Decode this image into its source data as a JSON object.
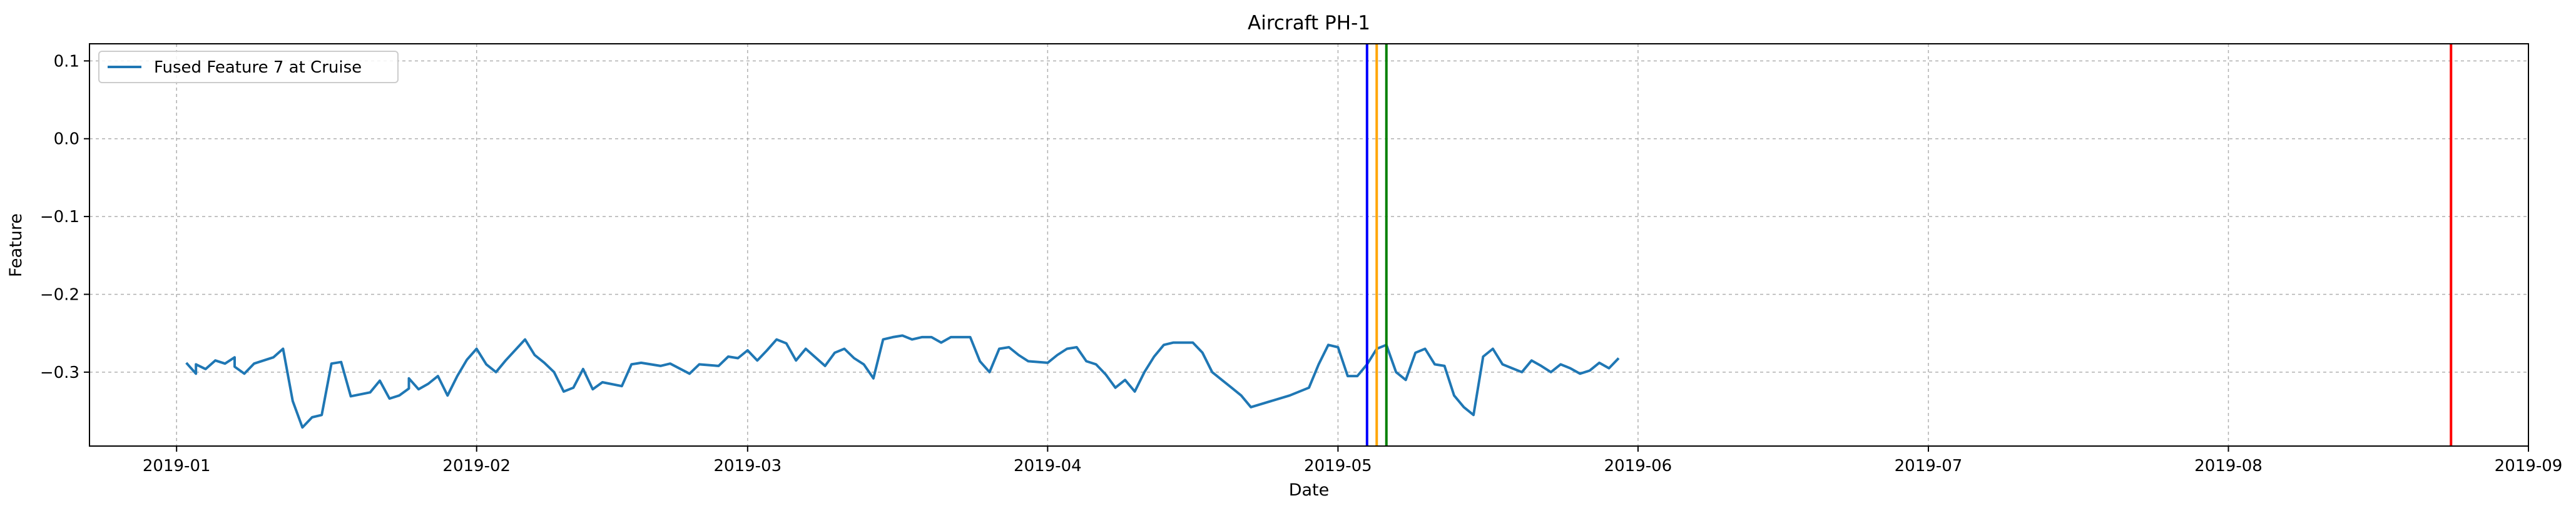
{
  "chart_data": {
    "type": "line",
    "title": "Aircraft PH-1",
    "xlabel": "Date",
    "ylabel": "Feature",
    "x_type": "date",
    "xlim": [
      "2018-12-23",
      "2019-09-01"
    ],
    "ylim": [
      -0.395,
      0.122
    ],
    "xticks": [
      "2019-01",
      "2019-02",
      "2019-03",
      "2019-04",
      "2019-05",
      "2019-06",
      "2019-07",
      "2019-08",
      "2019-09"
    ],
    "yticks": [
      -0.3,
      -0.2,
      -0.1,
      0.0,
      0.1
    ],
    "ytick_labels": [
      "−0.3",
      "−0.2",
      "−0.1",
      "0.0",
      "0.1"
    ],
    "grid": true,
    "legend_position": "top-left",
    "series": [
      {
        "name": "Fused Feature 7 at Cruise",
        "color": "#1f77b4",
        "points": [
          [
            "2019-01-02",
            -0.288
          ],
          [
            "2019-01-03",
            -0.302
          ],
          [
            "2019-01-03",
            -0.29
          ],
          [
            "2019-01-04",
            -0.296
          ],
          [
            "2019-01-05",
            -0.285
          ],
          [
            "2019-01-06",
            -0.289
          ],
          [
            "2019-01-07",
            -0.281
          ],
          [
            "2019-01-07",
            -0.293
          ],
          [
            "2019-01-08",
            -0.302
          ],
          [
            "2019-01-09",
            -0.289
          ],
          [
            "2019-01-10",
            -0.285
          ],
          [
            "2019-01-11",
            -0.281
          ],
          [
            "2019-01-12",
            -0.27
          ],
          [
            "2019-01-13",
            -0.337
          ],
          [
            "2019-01-14",
            -0.371
          ],
          [
            "2019-01-15",
            -0.358
          ],
          [
            "2019-01-16",
            -0.355
          ],
          [
            "2019-01-17",
            -0.289
          ],
          [
            "2019-01-18",
            -0.287
          ],
          [
            "2019-01-19",
            -0.331
          ],
          [
            "2019-01-21",
            -0.326
          ],
          [
            "2019-01-22",
            -0.311
          ],
          [
            "2019-01-23",
            -0.334
          ],
          [
            "2019-01-24",
            -0.33
          ],
          [
            "2019-01-25",
            -0.321
          ],
          [
            "2019-01-25",
            -0.308
          ],
          [
            "2019-01-26",
            -0.322
          ],
          [
            "2019-01-27",
            -0.315
          ],
          [
            "2019-01-28",
            -0.305
          ],
          [
            "2019-01-29",
            -0.33
          ],
          [
            "2019-01-30",
            -0.305
          ],
          [
            "2019-01-31",
            -0.284
          ],
          [
            "2019-02-01",
            -0.27
          ],
          [
            "2019-02-02",
            -0.29
          ],
          [
            "2019-02-03",
            -0.3
          ],
          [
            "2019-02-04",
            -0.285
          ],
          [
            "2019-02-06",
            -0.258
          ],
          [
            "2019-02-07",
            -0.278
          ],
          [
            "2019-02-08",
            -0.288
          ],
          [
            "2019-02-09",
            -0.3
          ],
          [
            "2019-02-10",
            -0.325
          ],
          [
            "2019-02-11",
            -0.32
          ],
          [
            "2019-02-12",
            -0.296
          ],
          [
            "2019-02-13",
            -0.322
          ],
          [
            "2019-02-14",
            -0.313
          ],
          [
            "2019-02-16",
            -0.318
          ],
          [
            "2019-02-17",
            -0.29
          ],
          [
            "2019-02-18",
            -0.288
          ],
          [
            "2019-02-20",
            -0.292
          ],
          [
            "2019-02-21",
            -0.289
          ],
          [
            "2019-02-23",
            -0.302
          ],
          [
            "2019-02-24",
            -0.29
          ],
          [
            "2019-02-26",
            -0.292
          ],
          [
            "2019-02-27",
            -0.28
          ],
          [
            "2019-02-28",
            -0.282
          ],
          [
            "2019-03-01",
            -0.272
          ],
          [
            "2019-03-02",
            -0.285
          ],
          [
            "2019-03-03",
            -0.272
          ],
          [
            "2019-03-04",
            -0.258
          ],
          [
            "2019-03-05",
            -0.263
          ],
          [
            "2019-03-06",
            -0.285
          ],
          [
            "2019-03-07",
            -0.27
          ],
          [
            "2019-03-09",
            -0.292
          ],
          [
            "2019-03-10",
            -0.275
          ],
          [
            "2019-03-11",
            -0.27
          ],
          [
            "2019-03-12",
            -0.282
          ],
          [
            "2019-03-13",
            -0.29
          ],
          [
            "2019-03-14",
            -0.308
          ],
          [
            "2019-03-15",
            -0.258
          ],
          [
            "2019-03-16",
            -0.255
          ],
          [
            "2019-03-17",
            -0.253
          ],
          [
            "2019-03-18",
            -0.258
          ],
          [
            "2019-03-19",
            -0.255
          ],
          [
            "2019-03-20",
            -0.255
          ],
          [
            "2019-03-21",
            -0.262
          ],
          [
            "2019-03-22",
            -0.255
          ],
          [
            "2019-03-23",
            -0.255
          ],
          [
            "2019-03-24",
            -0.255
          ],
          [
            "2019-03-25",
            -0.286
          ],
          [
            "2019-03-26",
            -0.3
          ],
          [
            "2019-03-27",
            -0.27
          ],
          [
            "2019-03-28",
            -0.268
          ],
          [
            "2019-03-29",
            -0.278
          ],
          [
            "2019-03-30",
            -0.286
          ],
          [
            "2019-04-01",
            -0.288
          ],
          [
            "2019-04-02",
            -0.278
          ],
          [
            "2019-04-03",
            -0.27
          ],
          [
            "2019-04-04",
            -0.268
          ],
          [
            "2019-04-05",
            -0.286
          ],
          [
            "2019-04-06",
            -0.29
          ],
          [
            "2019-04-07",
            -0.303
          ],
          [
            "2019-04-08",
            -0.32
          ],
          [
            "2019-04-09",
            -0.31
          ],
          [
            "2019-04-10",
            -0.325
          ],
          [
            "2019-04-11",
            -0.3
          ],
          [
            "2019-04-12",
            -0.28
          ],
          [
            "2019-04-13",
            -0.265
          ],
          [
            "2019-04-14",
            -0.262
          ],
          [
            "2019-04-16",
            -0.262
          ],
          [
            "2019-04-17",
            -0.275
          ],
          [
            "2019-04-18",
            -0.3
          ],
          [
            "2019-04-19",
            -0.31
          ],
          [
            "2019-04-20",
            -0.32
          ],
          [
            "2019-04-21",
            -0.33
          ],
          [
            "2019-04-22",
            -0.345
          ],
          [
            "2019-04-26",
            -0.33
          ],
          [
            "2019-04-28",
            -0.32
          ],
          [
            "2019-04-29",
            -0.29
          ],
          [
            "2019-04-30",
            -0.265
          ],
          [
            "2019-05-01",
            -0.268
          ],
          [
            "2019-05-02",
            -0.305
          ],
          [
            "2019-05-03",
            -0.305
          ],
          [
            "2019-05-04",
            -0.29
          ],
          [
            "2019-05-05",
            -0.27
          ],
          [
            "2019-05-06",
            -0.265
          ],
          [
            "2019-05-07",
            -0.3
          ],
          [
            "2019-05-08",
            -0.31
          ],
          [
            "2019-05-09",
            -0.275
          ],
          [
            "2019-05-10",
            -0.27
          ],
          [
            "2019-05-11",
            -0.29
          ],
          [
            "2019-05-12",
            -0.292
          ],
          [
            "2019-05-13",
            -0.33
          ],
          [
            "2019-05-14",
            -0.345
          ],
          [
            "2019-05-15",
            -0.355
          ],
          [
            "2019-05-16",
            -0.28
          ],
          [
            "2019-05-17",
            -0.27
          ],
          [
            "2019-05-18",
            -0.29
          ],
          [
            "2019-05-19",
            -0.295
          ],
          [
            "2019-05-20",
            -0.3
          ],
          [
            "2019-05-21",
            -0.285
          ],
          [
            "2019-05-22",
            -0.292
          ],
          [
            "2019-05-23",
            -0.3
          ],
          [
            "2019-05-24",
            -0.29
          ],
          [
            "2019-05-25",
            -0.295
          ],
          [
            "2019-05-26",
            -0.302
          ],
          [
            "2019-05-27",
            -0.298
          ],
          [
            "2019-05-28",
            -0.288
          ],
          [
            "2019-05-29",
            -0.295
          ],
          [
            "2019-05-30",
            -0.282
          ]
        ],
        "segments": [
          [
            [
              "2019-01-02",
              -0.288
            ],
            [
              "2019-01-03",
              -0.302
            ],
            [
              "2019-01-03",
              -0.29
            ],
            [
              "2019-01-04",
              -0.296
            ],
            [
              "2019-01-05",
              -0.285
            ],
            [
              "2019-01-06",
              -0.289
            ],
            [
              "2019-01-07",
              -0.281
            ],
            [
              "2019-01-07",
              -0.293
            ],
            [
              "2019-01-08",
              -0.302
            ],
            [
              "2019-01-09",
              -0.289
            ],
            [
              "2019-01-10",
              -0.285
            ],
            [
              "2019-01-11",
              -0.281
            ],
            [
              "2019-01-12",
              -0.27
            ],
            [
              "2019-01-13",
              -0.337
            ],
            [
              "2019-01-14",
              -0.371
            ],
            [
              "2019-01-15",
              -0.358
            ],
            [
              "2019-01-16",
              -0.355
            ],
            [
              "2019-01-17",
              -0.289
            ],
            [
              "2019-01-18",
              -0.287
            ],
            [
              "2019-01-19",
              -0.331
            ],
            [
              "2019-01-21",
              -0.326
            ],
            [
              "2019-01-22",
              -0.311
            ],
            [
              "2019-01-23",
              -0.334
            ],
            [
              "2019-01-24",
              -0.33
            ],
            [
              "2019-01-25",
              -0.321
            ],
            [
              "2019-01-25",
              -0.308
            ],
            [
              "2019-01-26",
              -0.322
            ],
            [
              "2019-01-27",
              -0.315
            ],
            [
              "2019-01-28",
              -0.305
            ],
            [
              "2019-01-29",
              -0.33
            ],
            [
              "2019-01-30",
              -0.305
            ],
            [
              "2019-01-31",
              -0.284
            ],
            [
              "2019-02-01",
              -0.27
            ],
            [
              "2019-02-02",
              -0.29
            ],
            [
              "2019-02-03",
              -0.3
            ],
            [
              "2019-02-04",
              -0.285
            ],
            [
              "2019-02-06",
              -0.258
            ],
            [
              "2019-02-07",
              -0.278
            ],
            [
              "2019-02-08",
              -0.288
            ],
            [
              "2019-02-09",
              -0.3
            ],
            [
              "2019-02-10",
              -0.325
            ],
            [
              "2019-02-11",
              -0.32
            ],
            [
              "2019-02-12",
              -0.296
            ],
            [
              "2019-02-13",
              -0.322
            ],
            [
              "2019-02-14",
              -0.313
            ],
            [
              "2019-02-16",
              -0.318
            ],
            [
              "2019-02-17",
              -0.29
            ],
            [
              "2019-02-18",
              -0.288
            ],
            [
              "2019-02-20",
              -0.292
            ],
            [
              "2019-02-21",
              -0.289
            ],
            [
              "2019-02-23",
              -0.302
            ],
            [
              "2019-02-24",
              -0.29
            ],
            [
              "2019-02-26",
              -0.292
            ],
            [
              "2019-02-27",
              -0.28
            ],
            [
              "2019-02-28",
              -0.282
            ],
            [
              "2019-03-01",
              -0.272
            ],
            [
              "2019-03-02",
              -0.285
            ],
            [
              "2019-03-03",
              -0.272
            ],
            [
              "2019-03-04",
              -0.258
            ],
            [
              "2019-03-05",
              -0.263
            ],
            [
              "2019-03-06",
              -0.285
            ],
            [
              "2019-03-07",
              -0.27
            ],
            [
              "2019-03-09",
              -0.292
            ],
            [
              "2019-03-10",
              -0.275
            ],
            [
              "2019-03-11",
              -0.27
            ],
            [
              "2019-03-12",
              -0.282
            ],
            [
              "2019-03-13",
              -0.29
            ],
            [
              "2019-03-14",
              -0.308
            ]
          ]
        ]
      }
    ],
    "vertical_lines": [
      {
        "x": "2019-05-04",
        "color": "#0000ff"
      },
      {
        "x": "2019-05-05",
        "color": "#ffa500"
      },
      {
        "x": "2019-05-06",
        "color": "#008000"
      },
      {
        "x": "2019-08-24",
        "color": "#ff0000"
      }
    ]
  }
}
